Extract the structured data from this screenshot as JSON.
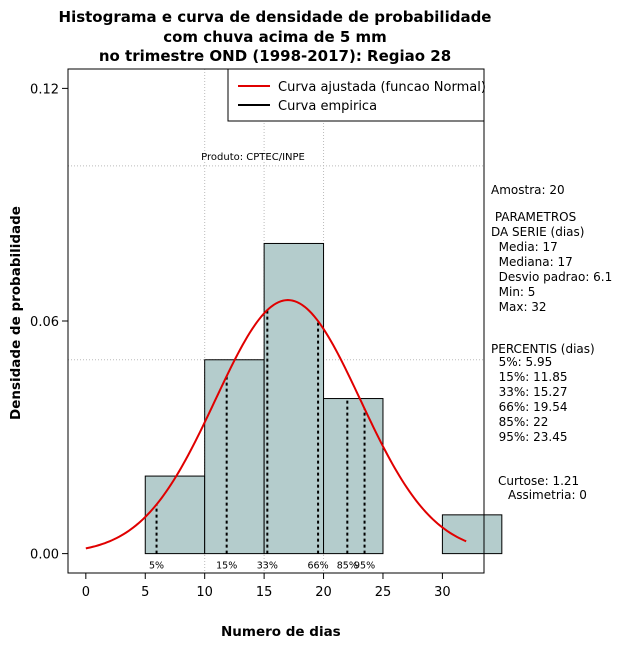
{
  "title_lines": [
    "Histograma e curva de densidade de probabilidade",
    "com chuva acima de 5 mm",
    "no trimestre OND (1998-2017): Regiao 28"
  ],
  "chart_data": {
    "type": "bar",
    "bins": [
      {
        "from": 5,
        "to": 10,
        "density": 0.02
      },
      {
        "from": 10,
        "to": 15,
        "density": 0.05
      },
      {
        "from": 15,
        "to": 20,
        "density": 0.08
      },
      {
        "from": 20,
        "to": 25,
        "density": 0.04
      },
      {
        "from": 25,
        "to": 30,
        "density": 0.0
      },
      {
        "from": 30,
        "to": 35,
        "density": 0.01
      }
    ],
    "xticks": [
      0,
      5,
      10,
      15,
      20,
      25,
      30
    ],
    "yticks": [
      0.0,
      0.06,
      0.12
    ],
    "ytick_labels": [
      "0.00",
      "0.06",
      "0.12"
    ],
    "xlim": [
      -1.5,
      33.5
    ],
    "ylim": [
      -0.005,
      0.125
    ],
    "hgrid": [
      0.1,
      0.05
    ],
    "vgrid": [
      10,
      15,
      20
    ],
    "normal_curve": {
      "mean": 17,
      "sd": 6.1,
      "x_from": 0,
      "x_to": 32
    },
    "percentile_lines": [
      {
        "label": "5%",
        "x": 5.95
      },
      {
        "label": "15%",
        "x": 11.85
      },
      {
        "label": "33%",
        "x": 15.27
      },
      {
        "label": "66%",
        "x": 19.54
      },
      {
        "label": "85%",
        "x": 22
      },
      {
        "label": "95%",
        "x": 23.45
      }
    ],
    "legend": [
      {
        "label": "Curva ajustada (funcao Normal)",
        "color": "#e00000"
      },
      {
        "label": "Curva empirica",
        "color": "#000000"
      }
    ],
    "product_label": "Produto: CPTEC/INPE",
    "xlabel": "Numero de dias",
    "ylabel": "Densidade de probabilidade",
    "colors": {
      "bar_fill": "#b4cccc",
      "curve": "#e00000",
      "grid": "#bbbbbb"
    }
  },
  "side_panel": {
    "amostra": "Amostra: 20",
    "parametros_title": " PARAMETROS\nDA SERIE (dias)",
    "parametros": "  Media: 17\n  Mediana: 17\n  Desvio padrao: 6.1\n  Min: 5\n  Max: 32",
    "percentis_title": "PERCENTIS (dias)",
    "percentis": "  5%: 5.95\n  15%: 11.85\n  33%: 15.27\n  66%: 19.54\n  85%: 22\n  95%: 23.45",
    "curtose": "Curtose: 1.21",
    "assimetria": "Assimetria: 0"
  }
}
